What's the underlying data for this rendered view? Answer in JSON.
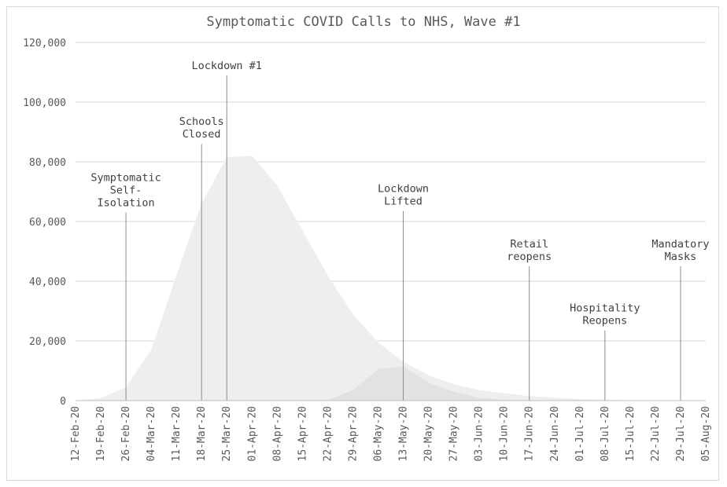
{
  "chart_data": {
    "type": "area",
    "title": "Symptomatic COVID Calls to NHS, Wave #1",
    "xlabel": "",
    "ylabel": "",
    "ylim": [
      0,
      120000
    ],
    "yticks": [
      0,
      20000,
      40000,
      60000,
      80000,
      100000,
      120000
    ],
    "ytick_labels": [
      "0",
      "20,000",
      "40,000",
      "60,000",
      "80,000",
      "100,000",
      "120,000"
    ],
    "grid": true,
    "legend": "none",
    "colors": {
      "area_main": "#eeeeee",
      "area_second": "#e2e2e2",
      "grid": "#d9d9d9",
      "text": "#595959",
      "annotation_line": "#8c8c8c"
    },
    "categories": [
      "12-Feb-20",
      "19-Feb-20",
      "26-Feb-20",
      "04-Mar-20",
      "11-Mar-20",
      "18-Mar-20",
      "25-Mar-20",
      "01-Apr-20",
      "08-Apr-20",
      "15-Apr-20",
      "22-Apr-20",
      "29-Apr-20",
      "06-May-20",
      "13-May-20",
      "20-May-20",
      "27-May-20",
      "03-Jun-20",
      "10-Jun-20",
      "17-Jun-20",
      "24-Jun-20",
      "01-Jul-20",
      "08-Jul-20",
      "15-Jul-20",
      "22-Jul-20",
      "29-Jul-20",
      "05-Aug-20"
    ],
    "series": [
      {
        "values": [
          0,
          800,
          4500,
          17000,
          42000,
          66000,
          81500,
          82000,
          72000,
          57000,
          42000,
          29000,
          19500,
          13000,
          8500,
          5500,
          3500,
          2500,
          1500,
          1000,
          500,
          300,
          100,
          0,
          0,
          0
        ]
      },
      {
        "values": [
          0,
          0,
          0,
          0,
          0,
          0,
          0,
          0,
          0,
          0,
          200,
          3500,
          10500,
          11500,
          6000,
          3000,
          1000,
          300,
          0,
          0,
          0,
          0,
          0,
          0,
          0,
          0
        ]
      }
    ],
    "annotations": [
      {
        "date": "26-Feb-20",
        "label": [
          "Symptomatic",
          "Self-",
          "Isolation"
        ],
        "line_top": 63000
      },
      {
        "date": "18-Mar-20",
        "label": [
          "Schools",
          "Closed"
        ],
        "line_top": 86000
      },
      {
        "date": "25-Mar-20",
        "label": [
          "Lockdown #1"
        ],
        "line_top": 109000
      },
      {
        "date": "13-May-20",
        "label": [
          "Lockdown",
          "Lifted"
        ],
        "line_top": 63500
      },
      {
        "date": "17-Jun-20",
        "label": [
          "Retail",
          "reopens"
        ],
        "line_top": 45000
      },
      {
        "date": "08-Jul-20",
        "label": [
          "Hospitality",
          "Reopens"
        ],
        "line_top": 23500
      },
      {
        "date": "29-Jul-20",
        "label": [
          "Mandatory",
          "Masks"
        ],
        "line_top": 45000
      }
    ]
  }
}
